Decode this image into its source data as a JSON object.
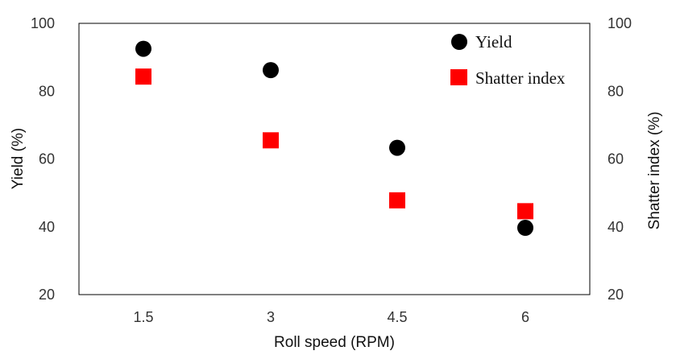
{
  "chart_data": {
    "type": "scatter",
    "x": [
      "1.5",
      "3",
      "4.5",
      "6"
    ],
    "series": [
      {
        "name": "Yield",
        "axis": "left",
        "marker": "circle",
        "color": "#000000",
        "values": [
          92.5,
          86.2,
          63.3,
          39.7
        ]
      },
      {
        "name": "Shatter index",
        "axis": "right",
        "marker": "square",
        "color": "#ff0000",
        "values": [
          84.3,
          65.5,
          47.8,
          44.6
        ]
      }
    ],
    "xlabel": "Roll speed  (RPM)",
    "ylabel": "Yield (%)",
    "y2label": "Shatter index (%)",
    "ylim": [
      20,
      100
    ],
    "y2lim": [
      20,
      100
    ],
    "yticks": [
      "20",
      "40",
      "60",
      "80",
      "100"
    ],
    "y2ticks": [
      "20",
      "40",
      "60",
      "80",
      "100"
    ],
    "grid": false,
    "legend_position": "top-right"
  }
}
